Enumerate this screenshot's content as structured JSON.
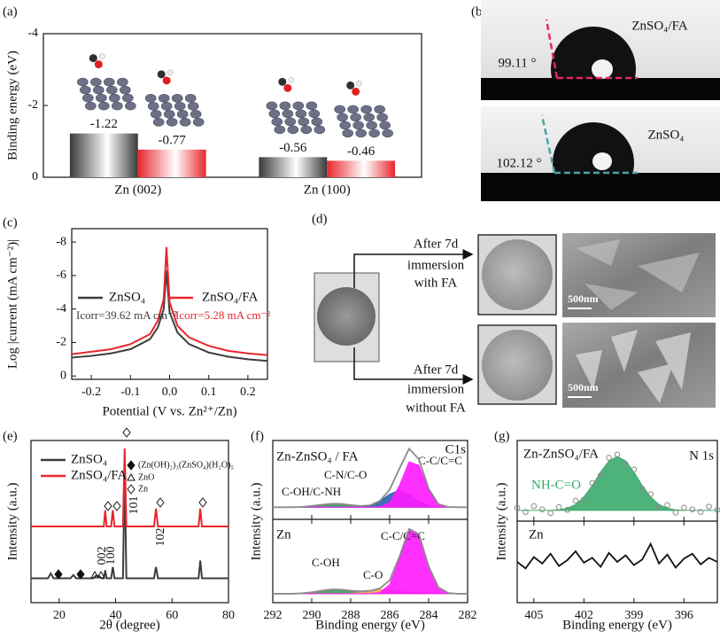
{
  "chart_data": [
    {
      "type": "bar",
      "label": "(a)",
      "ylabel": "Binding energy (eV)",
      "categories": [
        "Zn (002)",
        "Zn (100)"
      ],
      "series": [
        {
          "color": "#3a3a3a",
          "values": [
            -1.22,
            -0.56
          ]
        },
        {
          "color": "#e8262c",
          "values": [
            -0.77,
            -0.46
          ]
        }
      ],
      "ylim": [
        0,
        -4
      ],
      "yticks": [
        0,
        -2,
        -4
      ]
    },
    {
      "type": "line",
      "label": "(c)",
      "xlabel": "Potential (V vs. Zn²⁺/Zn)",
      "ylabel": "Log |current (mA cm⁻²)|",
      "x": [
        -0.25,
        -0.2,
        -0.15,
        -0.1,
        -0.05,
        -0.03,
        -0.015,
        -0.008,
        0,
        0.02,
        0.05,
        0.1,
        0.15,
        0.2,
        0.25
      ],
      "series": [
        {
          "name": "ZnSO₄",
          "color": "#3d3d3d",
          "values": [
            -1.1,
            -1.2,
            -1.35,
            -1.6,
            -2.2,
            -2.9,
            -4.0,
            -6.3,
            -3.8,
            -2.6,
            -1.9,
            -1.4,
            -1.15,
            -1.0,
            -0.9
          ]
        },
        {
          "name": "ZnSO₄/FA",
          "color": "#e8262c",
          "values": [
            -1.3,
            -1.45,
            -1.6,
            -1.9,
            -2.5,
            -3.3,
            -4.6,
            -7.7,
            -4.4,
            -3.0,
            -2.3,
            -1.8,
            -1.5,
            -1.35,
            -1.25
          ]
        }
      ],
      "xlim": [
        -0.25,
        0.25
      ],
      "xticks": [
        -0.2,
        -0.1,
        {
          "value": 0,
          "label": "0.0"
        },
        0.1,
        0.2
      ],
      "ylim": [
        0.2,
        -8.8
      ],
      "yticks": [
        0,
        -2,
        -4,
        -6,
        -8
      ],
      "annotations": [
        "Icorr=39.62 mA cm⁻²",
        "Icorr=5.28 mA cm⁻²"
      ]
    },
    {
      "type": "line",
      "label": "(e)",
      "xlabel": "2θ (degree)",
      "ylabel": "Intensity (a.u.)",
      "x": [
        10,
        16,
        17,
        18,
        24,
        25,
        26,
        32,
        33,
        34,
        35,
        35.8,
        36.3,
        36.8,
        38.4,
        39,
        39.6,
        42.6,
        43.2,
        43.8,
        53.6,
        54.3,
        55,
        69.4,
        70,
        70.6,
        80
      ],
      "series": [
        {
          "name": "ZnSO₄",
          "color": "#3d3d3d",
          "values": [
            15,
            15,
            18,
            15,
            15,
            17,
            15,
            15,
            16.5,
            16.5,
            15,
            15,
            20,
            15,
            15,
            22,
            15,
            15,
            84,
            15,
            15,
            22,
            15,
            15,
            26,
            15,
            15
          ]
        },
        {
          "name": "ZnSO₄/FA",
          "color": "#e8262c",
          "values": [
            47,
            47,
            47,
            47,
            47,
            47,
            47,
            47,
            47,
            47,
            47,
            47,
            57,
            47,
            47,
            57,
            47,
            47,
            95,
            47,
            47,
            58,
            47,
            47,
            58,
            47,
            47
          ]
        }
      ],
      "xlim": [
        10,
        80
      ],
      "xticks": [
        20,
        40,
        60,
        80
      ],
      "ylim": [
        0,
        100
      ],
      "annotations": [
        "(Zn(OH)₂)₃(ZnSO₄)(H₂O)₅",
        "ZnO",
        "Zn",
        "002",
        "100",
        "101",
        "102"
      ]
    },
    {
      "type": "area",
      "label": "(f)",
      "xlabel": "Binding energy (eV)",
      "ylabel": "Intensity (a.u.)",
      "x": [
        292,
        291.5,
        291,
        290.5,
        290,
        289.5,
        289,
        288.5,
        288,
        287.5,
        287,
        286.5,
        286,
        285.5,
        285,
        284.5,
        284,
        283.5,
        283,
        282.5,
        282
      ],
      "xlim": [
        292,
        282
      ],
      "xticks": [
        292,
        290,
        288,
        286,
        284,
        282
      ],
      "panels": [
        {
          "title": "Zn-ZnSO₄ / FA",
          "note": "C1s",
          "ylim": [
            -10,
            55
          ],
          "series": [
            {
              "kind": "line",
              "color": "#8a8a8a",
              "values": [
                0,
                0,
                0,
                0.3,
                1.0,
                2.0,
                2.9,
                2.8,
                1.8,
                1.0,
                1.6,
                5.3,
                14.5,
                31.8,
                48.2,
                39.5,
                15.3,
                2.6,
                0.2,
                0,
                0
              ]
            },
            {
              "kind": "area",
              "name": "C-OH/C-NH",
              "color": "#3f9a5c",
              "values": [
                0,
                0,
                0,
                0.3,
                1.0,
                2.0,
                2.9,
                2.8,
                1.8,
                0.8,
                0.2,
                0,
                0,
                0,
                0,
                0,
                0,
                0,
                0,
                0,
                0
              ]
            },
            {
              "kind": "area",
              "name": "C-N/C-O",
              "color": "#2d5fae",
              "values": [
                0,
                0,
                0,
                0,
                0,
                0,
                0,
                0,
                0,
                0.2,
                1.4,
                5.0,
                10.8,
                14,
                10.8,
                5.0,
                1.4,
                0.2,
                0,
                0,
                0
              ]
            },
            {
              "kind": "area",
              "name": "C-C/C=C",
              "color": "#ff1aff",
              "values": [
                0,
                0,
                0,
                0,
                0,
                0,
                0,
                0,
                0,
                0,
                0,
                0.3,
                3.7,
                17.8,
                37.4,
                34.5,
                13.9,
                2.4,
                0.2,
                0,
                0
              ]
            }
          ]
        },
        {
          "title": "Zn",
          "ylim": [
            -6,
            50
          ],
          "series": [
            {
              "kind": "line",
              "color": "#8a8a8a",
              "values": [
                0,
                0,
                0,
                0.3,
                1.0,
                2.0,
                2.9,
                2.8,
                2.0,
                1.6,
                2.0,
                3.6,
                9.0,
                24.8,
                43.6,
                40.0,
                18.5,
                4.3,
                0.5,
                0,
                0
              ]
            },
            {
              "kind": "area",
              "name": "C-OH",
              "color": "#3f9a5c",
              "values": [
                0,
                0,
                0,
                0.3,
                1.0,
                2.0,
                2.9,
                2.8,
                1.8,
                0.8,
                0.2,
                0,
                0,
                0,
                0,
                0,
                0,
                0,
                0,
                0,
                0
              ]
            },
            {
              "kind": "area",
              "name": "C-O",
              "color": "#f2a65a",
              "values": [
                0,
                0,
                0,
                0,
                0,
                0,
                0,
                0,
                0.2,
                0.8,
                1.8,
                2.8,
                2.9,
                2.0,
                1.0,
                0.3,
                0,
                0,
                0,
                0,
                0
              ]
            },
            {
              "kind": "area",
              "name": "C-C/C=C",
              "color": "#ff1aff",
              "values": [
                0,
                0,
                0,
                0,
                0,
                0,
                0,
                0,
                0,
                0,
                0,
                0.8,
                6.1,
                22.8,
                42.6,
                39.7,
                18.5,
                4.3,
                0.5,
                0,
                0
              ]
            }
          ]
        }
      ]
    },
    {
      "type": "area",
      "label": "(g)",
      "xlabel": "Binding energy (eV)",
      "ylabel": "Intensity (a.u.)",
      "x": [
        406,
        405.5,
        405,
        404.5,
        404,
        403.5,
        403,
        402.5,
        402,
        401.5,
        401,
        400.5,
        400,
        399.5,
        399,
        398.5,
        398,
        397.5,
        397,
        396.5,
        396,
        395.5,
        395,
        394.5,
        394
      ],
      "xlim": [
        406,
        394
      ],
      "xticks": [
        405,
        402,
        399,
        396
      ],
      "panels": [
        {
          "title": "Zn-ZnSO₄/FA",
          "note": "N 1s",
          "ylim": [
            -2,
            13
          ],
          "series": [
            {
              "kind": "area",
              "name": "NH-C=O",
              "color": "#3aab6b",
              "values": [
                0,
                0,
                0,
                0,
                0,
                0.1,
                0.4,
                1.1,
                2.5,
                4.6,
                7.1,
                9.2,
                10,
                9.2,
                7.1,
                4.6,
                2.5,
                1.1,
                0.4,
                0.1,
                0,
                0,
                0,
                0,
                0
              ]
            },
            {
              "kind": "scatter",
              "color": "#8a8a8a",
              "values": [
                0.5,
                -0.3,
                0.8,
                0.2,
                -0.5,
                0.6,
                0.1,
                1.8,
                2.0,
                5.1,
                6.5,
                9.8,
                10.4,
                8.6,
                7.6,
                4.0,
                3.0,
                0.6,
                1.0,
                -0.4,
                0.5,
                0.2,
                -0.3,
                0.7,
                0.1
              ]
            }
          ]
        },
        {
          "title": "Zn",
          "ylim": [
            0,
            10
          ],
          "series": [
            {
              "kind": "line",
              "color": "#111111",
              "values": [
                5,
                4.2,
                5.6,
                4.8,
                6.0,
                4.5,
                5.2,
                6.3,
                4.9,
                5.5,
                4.4,
                6.1,
                5.0,
                5.8,
                4.6,
                5.3,
                7.2,
                4.8,
                5.9,
                4.3,
                5.4,
                6.0,
                4.7,
                5.5,
                5.0
              ]
            }
          ]
        }
      ]
    }
  ],
  "panel_b": {
    "label": "(b)",
    "photos": [
      {
        "name": "ZnSO₄/FA",
        "angle": "99.11 °"
      },
      {
        "name": "ZnSO₄",
        "angle": "102.12 °"
      }
    ]
  },
  "panel_d": {
    "label": "(d)",
    "routes": [
      {
        "text": [
          "After 7d",
          "immersion",
          "with FA"
        ],
        "scale_bar": "500nm"
      },
      {
        "text": [
          "After 7d",
          "immersion",
          "without FA"
        ],
        "scale_bar": "500nm"
      }
    ]
  }
}
